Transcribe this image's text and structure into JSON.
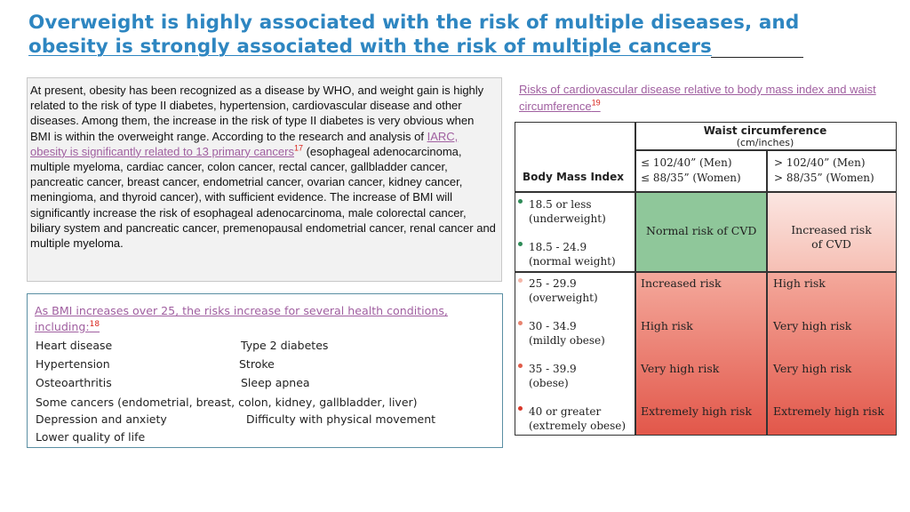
{
  "title": {
    "line1": "Overweight is highly associated with the risk of multiple diseases, and",
    "line2": "obesity is strongly associated with the risk of multiple cancers"
  },
  "paragraph": {
    "before_link": "At present, obesity has been recognized as a disease by WHO, and weight gain is highly related to the risk of type II diabetes, hypertension, cardiovascular disease and other diseases. Among them, the increase in the risk of type II diabetes is very obvious when BMI is within the overweight range. According to the research and analysis of ",
    "link": "IARC, obesity is significantly related to 13 primary cancers",
    "ref": "17",
    "after_link": " (esophageal adenocarcinoma, multiple myeloma, cardiac cancer, colon cancer, rectal cancer, gallbladder cancer, pancreatic cancer, breast cancer, endometrial cancer, ovarian cancer, kidney cancer, meningioma, and thyroid cancer), with sufficient evidence. The increase of BMI will significantly increase the risk of esophageal adenocarcinoma, male colorectal cancer, biliary system and pancreatic cancer, premenopausal endometrial cancer, renal cancer and multiple myeloma."
  },
  "conditions": {
    "heading": "As BMI increases over 25, the risks increase for several health conditions, including:",
    "ref": "18",
    "items": [
      "Heart disease",
      "Type 2 diabetes",
      "Hypertension",
      "Stroke",
      "Osteoarthritis",
      "Sleep apnea",
      "Some cancers (endometrial, breast, colon, kidney, gallbladder, liver)",
      "Depression and anxiety",
      "Difficulty with physical movement",
      "Lower quality of life"
    ]
  },
  "table": {
    "caption": "Risks of cardiovascular disease relative to body mass index and waist circumference",
    "ref": "19",
    "header": {
      "waist_title": "Waist circumference",
      "waist_units": "(cm/inches)",
      "bmi": "Body Mass Index",
      "col1_line1": "≤ 102/40” (Men)",
      "col1_line2": "≤ 88/35” (Women)",
      "col2_line1": "> 102/40” (Men)",
      "col2_line2": "> 88/35” (Women)"
    },
    "rows": [
      {
        "bmi": "18.5 or less",
        "desc": "(underweight)",
        "dot_color": "#2e8b57"
      },
      {
        "bmi": "18.5 - 24.9",
        "desc": "(normal weight)",
        "dot_color": "#2e8b57"
      },
      {
        "bmi": "25 - 29.9",
        "desc": "(overweight)",
        "dot_color": "#f4b6a8"
      },
      {
        "bmi": "30 - 34.9",
        "desc": "(mildly obese)",
        "dot_color": "#e8836f"
      },
      {
        "bmi": "35 - 39.9",
        "desc": "(obese)",
        "dot_color": "#e05c4a"
      },
      {
        "bmi": "40 or greater",
        "desc": "(extremely obese)",
        "dot_color": "#d8382a"
      }
    ],
    "risks": {
      "normal_col1": "Normal risk of CVD",
      "normal_col2_line1": "Increased risk",
      "normal_col2_line2": "of CVD",
      "r1c1": "Increased risk",
      "r1c2": "High risk",
      "r2c1": "High risk",
      "r2c2": "Very high risk",
      "r3c1": "Very high risk",
      "r3c2": "Very high risk",
      "r4c1": "Extremely high risk",
      "r4c2": "Extremely high risk"
    },
    "colors": {
      "normal_green": "#8fc79a",
      "pink_top": "#fbe6e2",
      "red_bottom": "#e2574a"
    }
  }
}
